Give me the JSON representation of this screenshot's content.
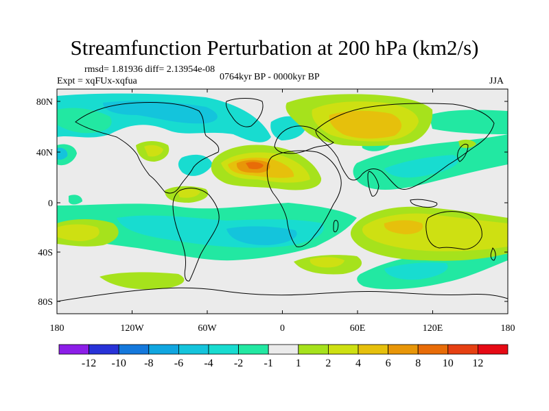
{
  "title": "Streamfunction Perturbation at 200 hPa (km2/s)",
  "stats_line": "rmsd= 1.81936 diff= 2.13954e-08",
  "experiment": "Expt = xqFUx-xqfua",
  "period": "0764kyr BP - 0000kyr BP",
  "season": "JJA",
  "lat_labels": [
    "80N",
    "40N",
    "0",
    "40S",
    "80S"
  ],
  "lon_labels": [
    "180",
    "120W",
    "60W",
    "0",
    "60E",
    "120E",
    "180"
  ],
  "colorbar": {
    "labels": [
      "-12",
      "-10",
      "-8",
      "-6",
      "-4",
      "-2",
      "-1",
      "1",
      "2",
      "4",
      "6",
      "8",
      "10",
      "12"
    ],
    "colors": [
      "#8c1ee8",
      "#2832d8",
      "#1478dc",
      "#10a6e0",
      "#14c4dc",
      "#18dcd0",
      "#22e8a2",
      "#ebebeb",
      "#a6e21c",
      "#cee012",
      "#e6c00c",
      "#e89608",
      "#e86c08",
      "#e64012",
      "#e60a14"
    ]
  },
  "chart_data": {
    "type": "heatmap",
    "title": "Streamfunction Perturbation at 200 hPa (km2/s)",
    "field_units": "km2/s",
    "level": "200 hPa",
    "season": "JJA",
    "contour_levels": [
      -12,
      -10,
      -8,
      -6,
      -4,
      -2,
      -1,
      1,
      2,
      4,
      6,
      8,
      10,
      12
    ],
    "lon_range": [
      -180,
      180
    ],
    "lat_range": [
      -90,
      90
    ],
    "features": [
      {
        "sign": "positive",
        "max_level": 10,
        "lon": -15,
        "lat": 30,
        "region": "North Africa / North Atlantic"
      },
      {
        "sign": "positive",
        "max_level": 6,
        "lon": 60,
        "lat": 60,
        "region": "Northern Eurasia"
      },
      {
        "sign": "positive",
        "max_level": 4,
        "lon": 105,
        "lat": -25,
        "region": "Southern Indian Ocean / Australia"
      },
      {
        "sign": "positive",
        "max_level": 4,
        "lon": -165,
        "lat": -25,
        "region": "South Pacific (west)"
      },
      {
        "sign": "positive",
        "max_level": 4,
        "lon": -110,
        "lat": 45,
        "region": "Western North America"
      },
      {
        "sign": "positive",
        "max_level": 2,
        "lon": -60,
        "lat": 5,
        "region": "Northern South America"
      },
      {
        "sign": "positive",
        "max_level": 2,
        "lon": 45,
        "lat": -45,
        "region": "South Indian Ocean (south)"
      },
      {
        "sign": "negative",
        "min_level": -6,
        "lon": -5,
        "lat": -25,
        "region": "South Atlantic"
      },
      {
        "sign": "negative",
        "min_level": -4,
        "lon": 130,
        "lat": 30,
        "region": "East Asia / West Pacific"
      },
      {
        "sign": "negative",
        "min_level": -4,
        "lon": -125,
        "lat": 75,
        "region": "Arctic Canada"
      },
      {
        "sign": "negative",
        "min_level": -4,
        "lon": 105,
        "lat": -60,
        "region": "Southern Ocean"
      },
      {
        "sign": "negative",
        "min_level": -2,
        "lon": -150,
        "lat": 55,
        "region": "North Pacific"
      },
      {
        "sign": "negative",
        "min_level": -2,
        "lon": -70,
        "lat": 30,
        "region": "Western North Atlantic"
      }
    ]
  }
}
